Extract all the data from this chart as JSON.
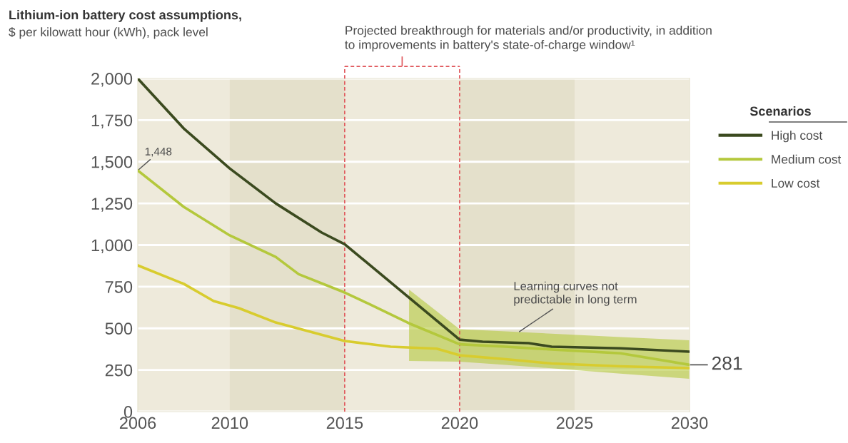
{
  "chart_data": {
    "type": "line",
    "title": "Lithium-ion battery cost assumptions,",
    "subtitle": "$ per kilowatt hour (kWh), pack level",
    "legend_title": "Scenarios",
    "xlim": [
      2006,
      2030
    ],
    "xticks": [
      2006,
      2010,
      2015,
      2020,
      2025,
      2030
    ],
    "ylim": [
      0,
      2000
    ],
    "yticks": [
      0,
      250,
      500,
      750,
      {
        "value": 1000,
        "label": "1,000"
      },
      {
        "value": 1250,
        "label": "1,250"
      },
      {
        "value": 1500,
        "label": "1,500"
      },
      {
        "value": 1750,
        "label": "1,750"
      },
      {
        "value": 2000,
        "label": "2,000"
      }
    ],
    "grid": "y",
    "legend": "top right",
    "bands": [
      {
        "axis": "x",
        "from": 2010,
        "to": 2015,
        "color": "#e4e0cb"
      },
      {
        "axis": "x",
        "from": 2020,
        "to": 2025,
        "color": "#e4e0cb"
      }
    ],
    "ref_lines": [
      {
        "axis": "x",
        "value": 2015,
        "color": "#e0555a",
        "line_style": "dashed",
        "label": "Projected breakthrough for materials and/or productivity, in addition\nto improvements in battery's state-of-charge window¹"
      },
      {
        "axis": "x",
        "value": 2020,
        "color": "#e0555a",
        "line_style": "dashed"
      }
    ],
    "series": [
      {
        "name": "High cost",
        "color": "#3b4a1f",
        "x": [
          2006,
          2008,
          2010,
          2012,
          2014,
          2015,
          2020,
          2021,
          2023,
          2024,
          2027,
          2030
        ],
        "values": [
          2000,
          1700,
          1460,
          1250,
          1075,
          1005,
          432,
          420,
          411,
          390,
          380,
          360
        ]
      },
      {
        "name": "Medium cost",
        "color": "#b4c83c",
        "x": [
          2006,
          2008,
          2010,
          2012,
          2013,
          2015,
          2016,
          2017.8,
          2020,
          2022,
          2024,
          2027,
          2030
        ],
        "values": [
          1448,
          1229,
          1058,
          929,
          825,
          715,
          650,
          530,
          404,
          390,
          373,
          350,
          281
        ],
        "lower": [
          null,
          null,
          null,
          null,
          null,
          null,
          null,
          304,
          300,
          280,
          260,
          228,
          197
        ],
        "upper": [
          null,
          null,
          null,
          null,
          null,
          null,
          null,
          732,
          495,
          482,
          468,
          448,
          428
        ],
        "value_labels": [
          "1,448",
          null,
          null,
          null,
          null,
          null,
          null,
          null,
          null,
          null,
          null,
          null,
          "281"
        ]
      },
      {
        "name": "Low cost",
        "color": "#d8cc2e",
        "x": [
          2006,
          2008,
          2009.3,
          2010.4,
          2012,
          2015,
          2016,
          2017,
          2019,
          2020,
          2022,
          2024,
          2027,
          2030
        ],
        "values": [
          878,
          767,
          664,
          621,
          535,
          424,
          407,
          390,
          378,
          338,
          315,
          289,
          272,
          261
        ]
      }
    ],
    "annotations": [
      {
        "text": "Learning curves not\npredictable in long term",
        "x": 2022.6,
        "y": 480
      }
    ]
  }
}
